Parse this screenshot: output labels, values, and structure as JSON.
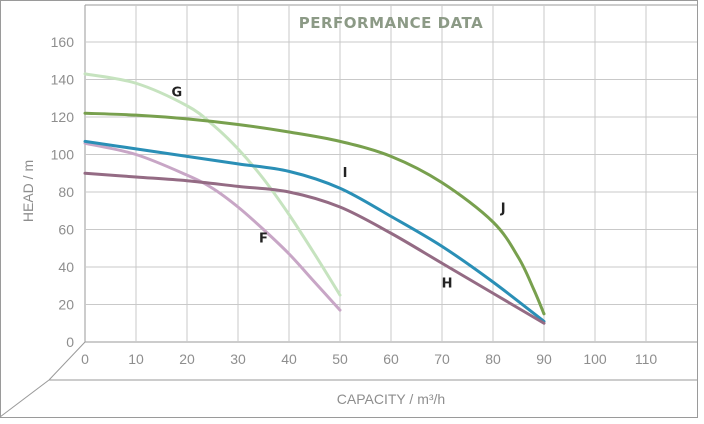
{
  "chart_data": {
    "type": "line",
    "title": "PERFORMANCE DATA",
    "xlabel": "CAPACITY / m³/h",
    "ylabel": "HEAD / m",
    "xlim": [
      0,
      120
    ],
    "ylim": [
      0,
      160
    ],
    "xticks": [
      "0",
      "10",
      "20",
      "30",
      "40",
      "50",
      "60",
      "70",
      "80",
      "90",
      "100",
      "110"
    ],
    "yticks": [
      "0",
      "20",
      "40",
      "60",
      "80",
      "100",
      "120",
      "140",
      "160"
    ],
    "grid": true,
    "series": [
      {
        "name": "G",
        "color": "#c6e3bf",
        "x": [
          0,
          10,
          20,
          25,
          30,
          35,
          40,
          45,
          50
        ],
        "y": [
          143,
          138,
          126,
          116,
          103,
          87,
          68,
          47,
          25
        ]
      },
      {
        "name": "F",
        "color": "#c8a6c6",
        "x": [
          0,
          10,
          20,
          25,
          30,
          35,
          40,
          45,
          50
        ],
        "y": [
          106,
          100,
          89,
          82,
          72,
          60,
          47,
          32,
          17
        ]
      },
      {
        "name": "J",
        "color": "#78a04e",
        "x": [
          0,
          10,
          20,
          30,
          40,
          50,
          60,
          70,
          80,
          85,
          88,
          90
        ],
        "y": [
          122,
          121,
          119,
          116,
          112,
          107,
          99,
          85,
          64,
          45,
          28,
          15
        ]
      },
      {
        "name": "I",
        "color": "#2a8fb6",
        "x": [
          0,
          10,
          20,
          30,
          40,
          50,
          60,
          70,
          80,
          90
        ],
        "y": [
          107,
          103,
          99,
          95,
          91,
          82,
          67,
          51,
          32,
          11
        ]
      },
      {
        "name": "H",
        "color": "#946b84",
        "x": [
          0,
          10,
          20,
          30,
          40,
          50,
          60,
          70,
          80,
          90
        ],
        "y": [
          90,
          88,
          86,
          83,
          80,
          72,
          58,
          42,
          26,
          10
        ]
      }
    ],
    "labels": [
      {
        "text": "G",
        "x": 18,
        "y": 131
      },
      {
        "text": "F",
        "x": 35,
        "y": 53
      },
      {
        "text": "J",
        "x": 82,
        "y": 69
      },
      {
        "text": "I",
        "x": 51,
        "y": 88
      },
      {
        "text": "H",
        "x": 71,
        "y": 29
      }
    ]
  }
}
